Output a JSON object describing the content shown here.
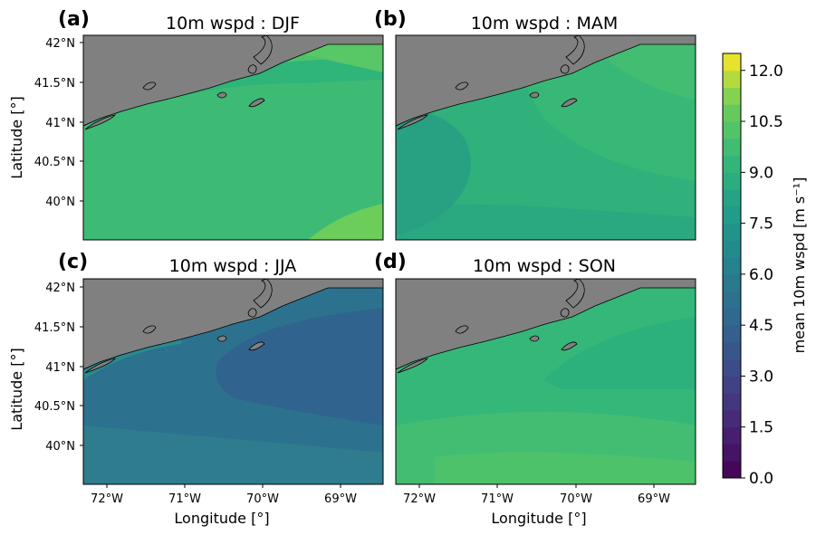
{
  "figure": {
    "panels": [
      {
        "letter": "(a)",
        "title": "10m wspd : DJF"
      },
      {
        "letter": "(b)",
        "title": "10m wspd : MAM"
      },
      {
        "letter": "(c)",
        "title": "10m wspd : JJA"
      },
      {
        "letter": "(d)",
        "title": "10m wspd : SON"
      }
    ],
    "ylabel": "Latitude [°]",
    "xlabel": "Longitude [°]",
    "lat_ticks": [
      "42°N",
      "41.5°N",
      "41°N",
      "40.5°N",
      "40°N"
    ],
    "lon_ticks": [
      "72°W",
      "71°W",
      "70°W",
      "69°W"
    ],
    "colorbar": {
      "label": "mean 10m wspd [m s⁻¹]",
      "ticks": [
        "12.0",
        "10.5",
        "9.0",
        "7.5",
        "6.0",
        "4.5",
        "3.0",
        "1.5",
        "0.0"
      ],
      "colormap": "viridis",
      "range": [
        0,
        12.5
      ],
      "step": 0.5
    },
    "colors": {
      "land": "#808080",
      "djf": "#45bf6f",
      "mam": "#30b07b",
      "jja": "#2c718e",
      "son": "#35b779"
    }
  }
}
